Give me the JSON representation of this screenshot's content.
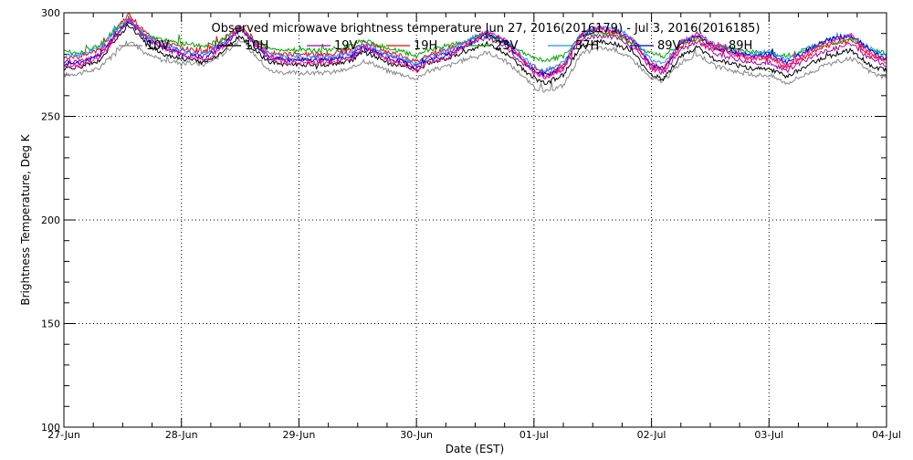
{
  "chart_data": {
    "type": "line",
    "title": "Observed microwave brightness temperature Jun 27, 2016(2016179) - Jul  3, 2016(2016185)",
    "xlabel": "Date (EST)",
    "ylabel": "Brightness Temperature, Deg K",
    "ylim": [
      100,
      300
    ],
    "xlim": [
      0,
      7
    ],
    "grid": true,
    "legend_position": "top",
    "x_ticks": [
      {
        "x": 0,
        "label": "27-Jun"
      },
      {
        "x": 1,
        "label": "28-Jun"
      },
      {
        "x": 2,
        "label": "29-Jun"
      },
      {
        "x": 3,
        "label": "30-Jun"
      },
      {
        "x": 4,
        "label": "01-Jul"
      },
      {
        "x": 5,
        "label": "02-Jul"
      },
      {
        "x": 6,
        "label": "03-Jul"
      },
      {
        "x": 7,
        "label": "04-Jul"
      }
    ],
    "y_ticks": [
      100,
      150,
      200,
      250,
      300
    ],
    "x_units": "days since 27-Jun 00:00 EST",
    "base_x": [
      0,
      0.15,
      0.3,
      0.45,
      0.55,
      0.62,
      0.7,
      0.85,
      1.0,
      1.2,
      1.35,
      1.5,
      1.62,
      1.75,
      1.9,
      2.05,
      2.25,
      2.45,
      2.55,
      2.65,
      2.75,
      2.9,
      3.0,
      3.1,
      3.25,
      3.45,
      3.6,
      3.75,
      3.9,
      4.0,
      4.1,
      4.25,
      4.4,
      4.55,
      4.7,
      4.85,
      5.0,
      5.1,
      5.25,
      5.4,
      5.55,
      5.7,
      5.85,
      6.0,
      6.15,
      6.3,
      6.5,
      6.7,
      6.85,
      7.0
    ],
    "series": [
      {
        "name": "10V",
        "color": "#888888",
        "values": [
          270,
          271,
          273,
          282,
          286,
          284,
          280,
          277,
          276,
          275,
          280,
          287,
          280,
          272,
          271,
          271,
          271,
          273,
          277,
          275,
          272,
          270,
          268,
          272,
          274,
          278,
          281,
          277,
          270,
          264,
          262,
          265,
          280,
          283,
          282,
          277,
          268,
          267,
          276,
          280,
          274,
          272,
          270,
          270,
          266,
          270,
          275,
          278,
          272,
          268
        ]
      },
      {
        "name": "10H",
        "color": "#000000",
        "values": [
          273,
          274,
          277,
          288,
          294,
          290,
          285,
          280,
          278,
          276,
          281,
          289,
          282,
          276,
          275,
          275,
          275,
          277,
          281,
          279,
          276,
          274,
          272,
          276,
          278,
          282,
          285,
          281,
          273,
          268,
          266,
          270,
          284,
          286,
          285,
          280,
          270,
          268,
          279,
          283,
          277,
          275,
          273,
          273,
          269,
          274,
          279,
          282,
          275,
          272
        ]
      },
      {
        "name": "19V",
        "color": "#aa00aa",
        "values": [
          276,
          277,
          280,
          291,
          297,
          293,
          288,
          284,
          281,
          279,
          285,
          292,
          285,
          279,
          278,
          278,
          278,
          280,
          284,
          282,
          279,
          277,
          274,
          278,
          280,
          285,
          288,
          284,
          276,
          271,
          269,
          273,
          287,
          289,
          288,
          283,
          273,
          271,
          282,
          286,
          280,
          278,
          276,
          276,
          272,
          277,
          282,
          285,
          278,
          275
        ]
      },
      {
        "name": "19H",
        "color": "#ff0000",
        "values": [
          278,
          279,
          282,
          293,
          299,
          295,
          290,
          286,
          283,
          281,
          287,
          294,
          287,
          281,
          280,
          280,
          280,
          282,
          286,
          284,
          281,
          279,
          276,
          280,
          282,
          287,
          290,
          286,
          278,
          273,
          271,
          275,
          289,
          291,
          290,
          285,
          275,
          273,
          284,
          288,
          282,
          280,
          278,
          278,
          274,
          279,
          284,
          287,
          280,
          277
        ]
      },
      {
        "name": "23V",
        "color": "#00aa00",
        "values": [
          281,
          281,
          284,
          293,
          296,
          293,
          289,
          287,
          285,
          284,
          287,
          292,
          287,
          283,
          282,
          282,
          282,
          284,
          287,
          285,
          283,
          281,
          279,
          282,
          284,
          287,
          289,
          286,
          281,
          278,
          277,
          279,
          289,
          290,
          289,
          285,
          280,
          279,
          285,
          288,
          284,
          283,
          281,
          281,
          279,
          282,
          285,
          287,
          283,
          280
        ]
      },
      {
        "name": "37H",
        "color": "#1e90ff",
        "values": [
          279,
          280,
          283,
          292,
          297,
          293,
          289,
          285,
          282,
          280,
          286,
          293,
          286,
          280,
          279,
          279,
          279,
          281,
          285,
          283,
          280,
          278,
          275,
          279,
          281,
          287,
          291,
          287,
          279,
          274,
          272,
          276,
          290,
          293,
          292,
          287,
          277,
          275,
          286,
          290,
          284,
          282,
          280,
          281,
          277,
          282,
          287,
          289,
          283,
          279
        ]
      },
      {
        "name": "89V",
        "color": "#0000cc",
        "values": [
          275,
          276,
          279,
          290,
          296,
          292,
          287,
          283,
          280,
          278,
          284,
          292,
          285,
          278,
          277,
          277,
          277,
          279,
          283,
          281,
          278,
          276,
          273,
          277,
          279,
          285,
          290,
          286,
          277,
          272,
          270,
          274,
          289,
          292,
          291,
          286,
          275,
          273,
          285,
          289,
          283,
          281,
          279,
          280,
          276,
          281,
          287,
          289,
          282,
          278
        ]
      },
      {
        "name": "89H",
        "color": "#ff1493",
        "values": [
          274,
          275,
          278,
          289,
          297,
          293,
          288,
          283,
          280,
          277,
          283,
          293,
          286,
          278,
          276,
          276,
          276,
          278,
          283,
          281,
          277,
          275,
          272,
          276,
          278,
          285,
          291,
          287,
          277,
          271,
          269,
          273,
          290,
          293,
          291,
          286,
          274,
          272,
          286,
          290,
          283,
          280,
          278,
          279,
          274,
          280,
          286,
          289,
          281,
          276
        ]
      }
    ]
  }
}
